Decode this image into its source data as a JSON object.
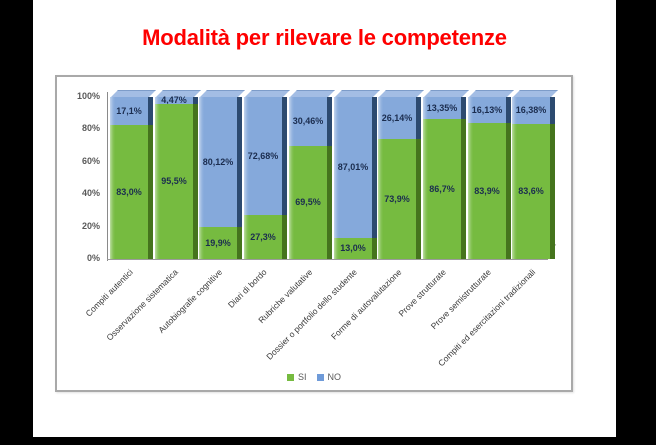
{
  "window": {
    "background_color": "#000000",
    "slide_background_color": "#ffffff"
  },
  "title": {
    "text": "Modalità per rilevare le competenze",
    "color": "#fe0000"
  },
  "chart_data": {
    "type": "bar",
    "stacked": true,
    "orientation": "vertical",
    "title": "Modalità per rilevare le competenze",
    "categories": [
      "Compiti autentici",
      "Osservazione sistematica",
      "Autobiografie cognitive",
      "Diari di bordo",
      "Rubriche valutative",
      "Dossier o portfolio dello studente",
      "Forme di autovalutazione",
      "Prove strutturate",
      "Prove semistrutturate",
      "Compiti ed esercitazioni tradizionali"
    ],
    "series": [
      {
        "name": "SI",
        "color": "#76bb40",
        "values": [
          83.0,
          95.5,
          19.9,
          27.3,
          69.5,
          13.0,
          73.9,
          86.7,
          83.9,
          83.6
        ],
        "labels": [
          "83,0%",
          "95,5%",
          "19,9%",
          "27,3%",
          "69,5%",
          "13,0%",
          "73,9%",
          "86,7%",
          "83,9%",
          "83,6%"
        ]
      },
      {
        "name": "NO",
        "color": "#85a9db",
        "values": [
          17.1,
          4.47,
          80.12,
          72.68,
          30.46,
          87.01,
          26.14,
          13.35,
          16.13,
          16.38
        ],
        "labels": [
          "17,1%",
          "4,47%",
          "80,12%",
          "72,68%",
          "30,46%",
          "87,01%",
          "26,14%",
          "13,35%",
          "16,13%",
          "16,38%"
        ]
      }
    ],
    "y_ticks": [
      "100%",
      "80%",
      "60%",
      "40%",
      "20%",
      "0%"
    ],
    "ylim": [
      0,
      100
    ],
    "grid": false,
    "legend": {
      "position": "bottom",
      "entries": [
        {
          "label": "SI",
          "color": "#76bb40"
        },
        {
          "label": "NO",
          "color": "#6f9bd9"
        }
      ]
    }
  }
}
